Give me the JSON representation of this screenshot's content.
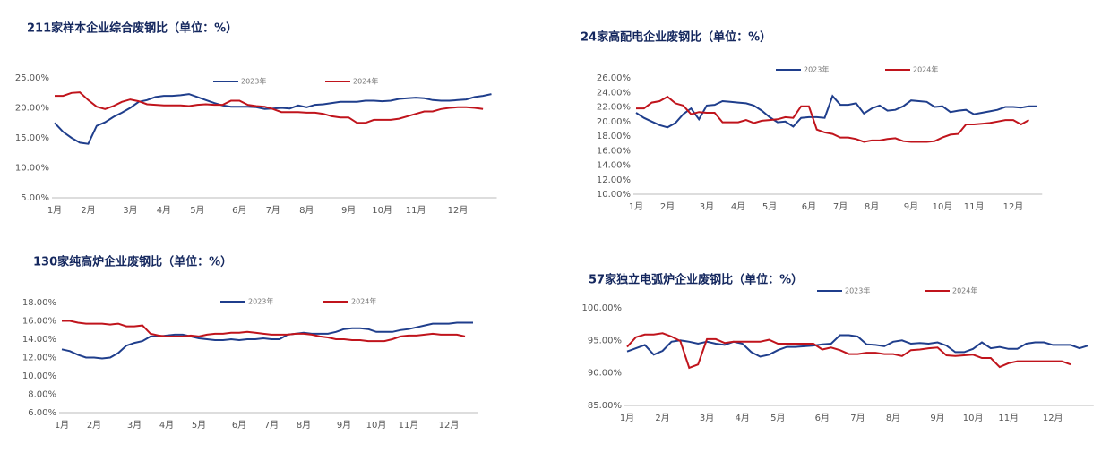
{
  "chart_data": [
    {
      "type": "line",
      "title": "211家样本企业综合废钢比（单位：%）",
      "categories": [
        "1月",
        null,
        null,
        null,
        "2月",
        null,
        null,
        null,
        null,
        "3月",
        null,
        null,
        null,
        "4月",
        null,
        null,
        null,
        "5月",
        null,
        null,
        null,
        null,
        "6月",
        null,
        null,
        null,
        "7月",
        null,
        null,
        null,
        "8月",
        null,
        null,
        null,
        null,
        "9月",
        null,
        null,
        null,
        "10月",
        null,
        null,
        null,
        "11月",
        null,
        null,
        null,
        null,
        "12月",
        null,
        null,
        null,
        null
      ],
      "series": [
        {
          "name": "2023年",
          "color": "#1f3e8c",
          "values": [
            17.5,
            16,
            15,
            14.2,
            14,
            17,
            17.6,
            18.5,
            19.2,
            20,
            21,
            21.3,
            21.8,
            22,
            22,
            22.1,
            22.3,
            21.8,
            21.3,
            20.8,
            20.4,
            20.2,
            20.2,
            20.2,
            20.1,
            19.8,
            19.9,
            20,
            19.9,
            20.4,
            20.1,
            20.5,
            20.6,
            20.8,
            21,
            21,
            21,
            21.2,
            21.2,
            21.1,
            21.2,
            21.5,
            21.6,
            21.7,
            21.6,
            21.3,
            21.2,
            21.2,
            21.3,
            21.4,
            21.8,
            22,
            22.3
          ]
        },
        {
          "name": "2024年",
          "color": "#c0141c",
          "values": [
            22,
            22,
            22.5,
            22.6,
            21.3,
            20.2,
            19.8,
            20.3,
            21,
            21.4,
            21.1,
            20.6,
            20.5,
            20.4,
            20.4,
            20.4,
            20.3,
            20.5,
            20.6,
            20.5,
            20.5,
            21.2,
            21.2,
            20.5,
            20.3,
            20.2,
            19.8,
            19.3,
            19.3,
            19.3,
            19.2,
            19.2,
            19,
            18.6,
            18.4,
            18.4,
            17.5,
            17.5,
            18,
            18,
            18,
            18.2,
            18.6,
            19,
            19.4,
            19.4,
            19.8,
            20,
            20.1,
            20.1,
            20,
            19.8,
            null
          ]
        }
      ],
      "ylim": [
        5,
        25
      ],
      "yticks": [
        {
          "value": 5,
          "label": "5.00%"
        },
        {
          "value": 10,
          "label": "10.00%"
        },
        {
          "value": 15,
          "label": "15.00%"
        },
        {
          "value": 20,
          "label": "20.00%"
        },
        {
          "value": 25,
          "label": "25.00%"
        }
      ]
    },
    {
      "type": "line",
      "title": "24家高配电企业废钢比（单位：%）",
      "categories": [
        "1月",
        null,
        null,
        null,
        "2月",
        null,
        null,
        null,
        null,
        "3月",
        null,
        null,
        null,
        "4月",
        null,
        null,
        null,
        "5月",
        null,
        null,
        null,
        null,
        "6月",
        null,
        null,
        null,
        "7月",
        null,
        null,
        null,
        "8月",
        null,
        null,
        null,
        null,
        "9月",
        null,
        null,
        null,
        "10月",
        null,
        null,
        null,
        "11月",
        null,
        null,
        null,
        null,
        "12月",
        null,
        null,
        null
      ],
      "series": [
        {
          "name": "2023年",
          "color": "#1f3e8c",
          "values": [
            21.2,
            20.5,
            20,
            19.5,
            19.2,
            19.8,
            21,
            21.8,
            20.3,
            22.2,
            22.3,
            22.8,
            22.7,
            22.6,
            22.5,
            22.2,
            21.5,
            20.6,
            19.9,
            20,
            19.3,
            20.5,
            20.6,
            20.6,
            20.5,
            23.5,
            22.3,
            22.3,
            22.5,
            21.1,
            21.8,
            22.2,
            21.5,
            21.6,
            22.1,
            22.9,
            22.8,
            22.7,
            22,
            22.1,
            21.3,
            21.5,
            21.6,
            21,
            21.2,
            21.4,
            21.6,
            22,
            22,
            21.9,
            22.1,
            22.1
          ]
        },
        {
          "name": "2024年",
          "color": "#c0141c",
          "values": [
            21.8,
            21.8,
            22.6,
            22.8,
            23.4,
            22.5,
            22.2,
            21,
            21.3,
            21.2,
            21.2,
            19.9,
            19.9,
            19.9,
            20.2,
            19.8,
            20.1,
            20.2,
            20.3,
            20.6,
            20.5,
            22.1,
            22.1,
            18.9,
            18.5,
            18.3,
            17.8,
            17.8,
            17.6,
            17.2,
            17.4,
            17.4,
            17.6,
            17.7,
            17.3,
            17.2,
            17.2,
            17.2,
            17.3,
            17.8,
            18.2,
            18.3,
            19.6,
            19.6,
            19.7,
            19.8,
            20,
            20.2,
            20.2,
            19.6,
            20.2,
            null
          ]
        }
      ],
      "ylim": [
        10,
        26
      ],
      "yticks": [
        {
          "value": 10,
          "label": "10.00%"
        },
        {
          "value": 12,
          "label": "12.00%"
        },
        {
          "value": 14,
          "label": "14.00%"
        },
        {
          "value": 16,
          "label": "16.00%"
        },
        {
          "value": 18,
          "label": "18.00%"
        },
        {
          "value": 20,
          "label": "20.00%"
        },
        {
          "value": 22,
          "label": "22.00%"
        },
        {
          "value": 24,
          "label": "24.00%"
        },
        {
          "value": 26,
          "label": "26.00%"
        }
      ]
    },
    {
      "type": "line",
      "title": "130家纯高炉企业废钢比（单位：%）",
      "categories": [
        "1月",
        null,
        null,
        null,
        "2月",
        null,
        null,
        null,
        null,
        "3月",
        null,
        null,
        null,
        "4月",
        null,
        null,
        null,
        "5月",
        null,
        null,
        null,
        null,
        "6月",
        null,
        null,
        null,
        "7月",
        null,
        null,
        null,
        "8月",
        null,
        null,
        null,
        null,
        "9月",
        null,
        null,
        null,
        "10月",
        null,
        null,
        null,
        "11月",
        null,
        null,
        null,
        null,
        "12月",
        null,
        null,
        null
      ],
      "series": [
        {
          "name": "2023年",
          "color": "#1f3e8c",
          "values": [
            12.9,
            12.7,
            12.3,
            12,
            12,
            11.9,
            12,
            12.5,
            13.3,
            13.6,
            13.8,
            14.3,
            14.3,
            14.4,
            14.5,
            14.5,
            14.3,
            14.1,
            14,
            13.9,
            13.9,
            14,
            13.9,
            14,
            14,
            14.1,
            14,
            14,
            14.5,
            14.6,
            14.7,
            14.6,
            14.6,
            14.6,
            14.8,
            15.1,
            15.2,
            15.2,
            15.1,
            14.8,
            14.8,
            14.8,
            15,
            15.1,
            15.3,
            15.5,
            15.7,
            15.7,
            15.7,
            15.8,
            15.8,
            15.8
          ]
        },
        {
          "name": "2024年",
          "color": "#c0141c",
          "values": [
            16,
            16,
            15.8,
            15.7,
            15.7,
            15.7,
            15.6,
            15.7,
            15.4,
            15.4,
            15.5,
            14.6,
            14.4,
            14.3,
            14.3,
            14.3,
            14.4,
            14.3,
            14.5,
            14.6,
            14.6,
            14.7,
            14.7,
            14.8,
            14.7,
            14.6,
            14.5,
            14.5,
            14.5,
            14.6,
            14.6,
            14.5,
            14.3,
            14.2,
            14,
            14,
            13.9,
            13.9,
            13.8,
            13.8,
            13.8,
            14,
            14.3,
            14.4,
            14.4,
            14.5,
            14.6,
            14.5,
            14.5,
            14.5,
            14.3,
            null
          ]
        }
      ],
      "ylim": [
        6,
        18
      ],
      "yticks": [
        {
          "value": 6,
          "label": "6.00%"
        },
        {
          "value": 8,
          "label": "8.00%"
        },
        {
          "value": 10,
          "label": "10.00%"
        },
        {
          "value": 12,
          "label": "12.00%"
        },
        {
          "value": 14,
          "label": "14.00%"
        },
        {
          "value": 16,
          "label": "16.00%"
        },
        {
          "value": 18,
          "label": "18.00%"
        }
      ]
    },
    {
      "type": "line",
      "title": "57家独立电弧炉企业废钢比（单位：%）",
      "categories": [
        "1月",
        null,
        null,
        null,
        "2月",
        null,
        null,
        null,
        null,
        "3月",
        null,
        null,
        null,
        "4月",
        null,
        null,
        null,
        "5月",
        null,
        null,
        null,
        null,
        "6月",
        null,
        null,
        null,
        "7月",
        null,
        null,
        null,
        "8月",
        null,
        null,
        null,
        null,
        "9月",
        null,
        null,
        null,
        "10月",
        null,
        null,
        null,
        "11月",
        null,
        null,
        null,
        null,
        "12月",
        null,
        null,
        null,
        null
      ],
      "series": [
        {
          "name": "2023年",
          "color": "#1f3e8c",
          "values": [
            93.3,
            93.8,
            94.3,
            92.8,
            93.4,
            94.8,
            95,
            94.8,
            94.5,
            94.8,
            94.5,
            94.3,
            94.8,
            94.5,
            93.2,
            92.5,
            92.8,
            93.5,
            94,
            94,
            94.1,
            94.2,
            94.4,
            94.5,
            95.8,
            95.8,
            95.6,
            94.4,
            94.3,
            94.1,
            94.8,
            95,
            94.5,
            94.6,
            94.5,
            94.7,
            94.2,
            93.2,
            93.2,
            93.7,
            94.7,
            93.8,
            94,
            93.7,
            93.7,
            94.5,
            94.7,
            94.7,
            94.3,
            94.3,
            94.3,
            93.8,
            94.2
          ]
        },
        {
          "name": "2024年",
          "color": "#c0141c",
          "values": [
            94,
            95.5,
            95.9,
            95.9,
            96.1,
            95.6,
            94.9,
            90.8,
            91.3,
            95.2,
            95.2,
            94.6,
            94.8,
            94.8,
            94.8,
            94.8,
            95.1,
            94.5,
            94.5,
            94.5,
            94.5,
            94.5,
            93.6,
            93.9,
            93.5,
            92.9,
            92.9,
            93.1,
            93.1,
            92.9,
            92.9,
            92.6,
            93.5,
            93.6,
            93.8,
            93.9,
            92.7,
            92.6,
            92.7,
            92.8,
            92.3,
            92.3,
            90.9,
            91.5,
            91.8,
            91.8,
            91.8,
            91.8,
            91.8,
            91.8,
            91.3,
            null,
            null
          ]
        }
      ],
      "ylim": [
        85,
        100
      ],
      "yticks": [
        {
          "value": 85,
          "label": "85.00%"
        },
        {
          "value": 90,
          "label": "90.00%"
        },
        {
          "value": 95,
          "label": "95.00%"
        },
        {
          "value": 100,
          "label": "100.00%"
        }
      ]
    }
  ]
}
